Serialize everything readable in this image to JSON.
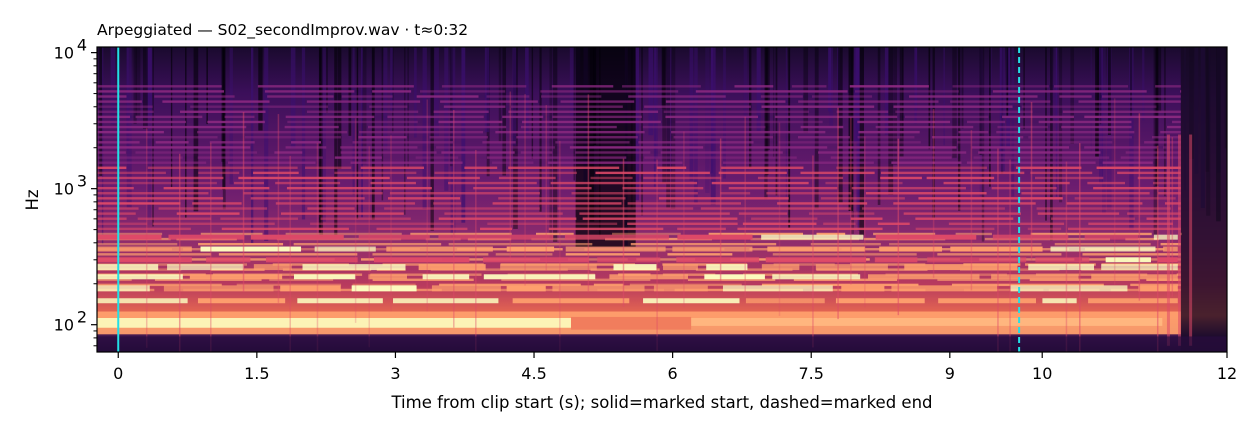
{
  "chart_data": {
    "type": "heatmap",
    "subtype": "spectrogram",
    "title": "Arpeggiated  —  S02_secondImprov.wav · t≈0:32",
    "xlabel": "Time from clip start (s); solid=marked start, dashed=marked end",
    "ylabel": "Hz",
    "x_scale": "linear",
    "y_scale": "log",
    "xlim": [
      -0.23,
      12.0
    ],
    "ylim": [
      63,
      11000
    ],
    "x_ticks": [
      0,
      1.5,
      3,
      4.5,
      6,
      7.5,
      9,
      10,
      12
    ],
    "x_tick_labels": [
      "0",
      "1.5",
      "3",
      "4.5",
      "6",
      "7.5",
      "9",
      "10",
      "12"
    ],
    "y_ticks": [
      100,
      1000,
      10000
    ],
    "y_tick_labels": [
      {
        "base": "10",
        "exp": "2"
      },
      {
        "base": "10",
        "exp": "3"
      },
      {
        "base": "10",
        "exp": "4"
      }
    ],
    "markers": [
      {
        "name": "marked start",
        "x": 0.0,
        "style": "solid",
        "color": "#22e0e6"
      },
      {
        "name": "marked end",
        "x": 9.75,
        "style": "dashed",
        "color": "#22e0e6"
      }
    ],
    "colormap": "magma",
    "colors": {
      "low": "#000004",
      "mid_low": "#3b0f70",
      "mid": "#8c2981",
      "mid_high": "#de4968",
      "high": "#fe9f6d",
      "peak": "#fcfdbf"
    },
    "sound_end_s": 11.5,
    "fundamental_band_hz": [
      85,
      125
    ],
    "grid": false,
    "legend": "none"
  }
}
